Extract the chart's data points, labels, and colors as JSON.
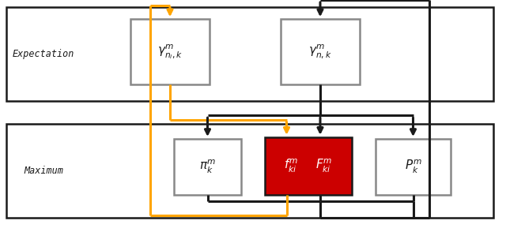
{
  "fig_width": 6.4,
  "fig_height": 3.08,
  "dpi": 100,
  "orange": "#FFA500",
  "black": "#1a1a1a",
  "red_bg": "#cc0000",
  "gray_face": "#f0f0f0",
  "white": "#ffffff",
  "box_edge": "#888888",
  "expectation_label": "Expectation",
  "maximum_label": "Maximum",
  "gamma_ni_label": "$\\gamma^{m}_{n_i,k}$",
  "gamma_n_label": "$\\gamma^{m}_{n,k}$",
  "pi_label": "$\\pi^{m}_{k}$",
  "f_label": "$f^{m}_{ki}$",
  "F_label": "$F^{m}_{ki}$",
  "P_label": "$P^{m}_{k}$"
}
